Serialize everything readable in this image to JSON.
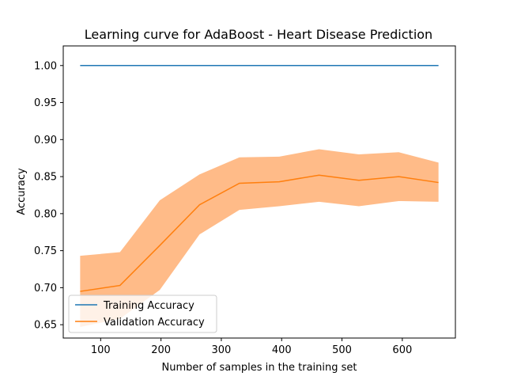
{
  "chart_data": {
    "type": "line",
    "title": "Learning curve for AdaBoost - Heart Disease Prediction",
    "xlabel": "Number of samples in the training set",
    "ylabel": "Accuracy",
    "xlim": [
      38,
      688
    ],
    "ylim": [
      0.632,
      1.0265
    ],
    "xticks": [
      100,
      200,
      300,
      400,
      500,
      600
    ],
    "yticks": [
      0.65,
      0.7,
      0.75,
      0.8,
      0.85,
      0.9,
      0.95,
      1.0
    ],
    "xtick_labels": [
      "100",
      "200",
      "300",
      "400",
      "500",
      "600"
    ],
    "ytick_labels": [
      "0.65",
      "0.70",
      "0.75",
      "0.80",
      "0.85",
      "0.90",
      "0.95",
      "1.00"
    ],
    "x": [
      66,
      132,
      198,
      264,
      330,
      396,
      462,
      528,
      594,
      660
    ],
    "series": [
      {
        "name": "Training Accuracy",
        "color": "#1f77b4",
        "values": [
          1.0,
          1.0,
          1.0,
          1.0,
          1.0,
          1.0,
          1.0,
          1.0,
          1.0,
          1.0
        ],
        "lower": [
          1.0,
          1.0,
          1.0,
          1.0,
          1.0,
          1.0,
          1.0,
          1.0,
          1.0,
          1.0
        ],
        "upper": [
          1.0,
          1.0,
          1.0,
          1.0,
          1.0,
          1.0,
          1.0,
          1.0,
          1.0,
          1.0
        ]
      },
      {
        "name": "Validation Accuracy",
        "color": "#ff7f0e",
        "band_color": "#ffbb88",
        "values": [
          0.695,
          0.703,
          0.757,
          0.812,
          0.841,
          0.843,
          0.852,
          0.845,
          0.85,
          0.842
        ],
        "lower": [
          0.647,
          0.658,
          0.697,
          0.772,
          0.805,
          0.81,
          0.816,
          0.81,
          0.817,
          0.816
        ],
        "upper": [
          0.743,
          0.748,
          0.818,
          0.853,
          0.876,
          0.877,
          0.887,
          0.88,
          0.883,
          0.869
        ]
      }
    ],
    "grid": false,
    "legend_position": "lower-left"
  }
}
